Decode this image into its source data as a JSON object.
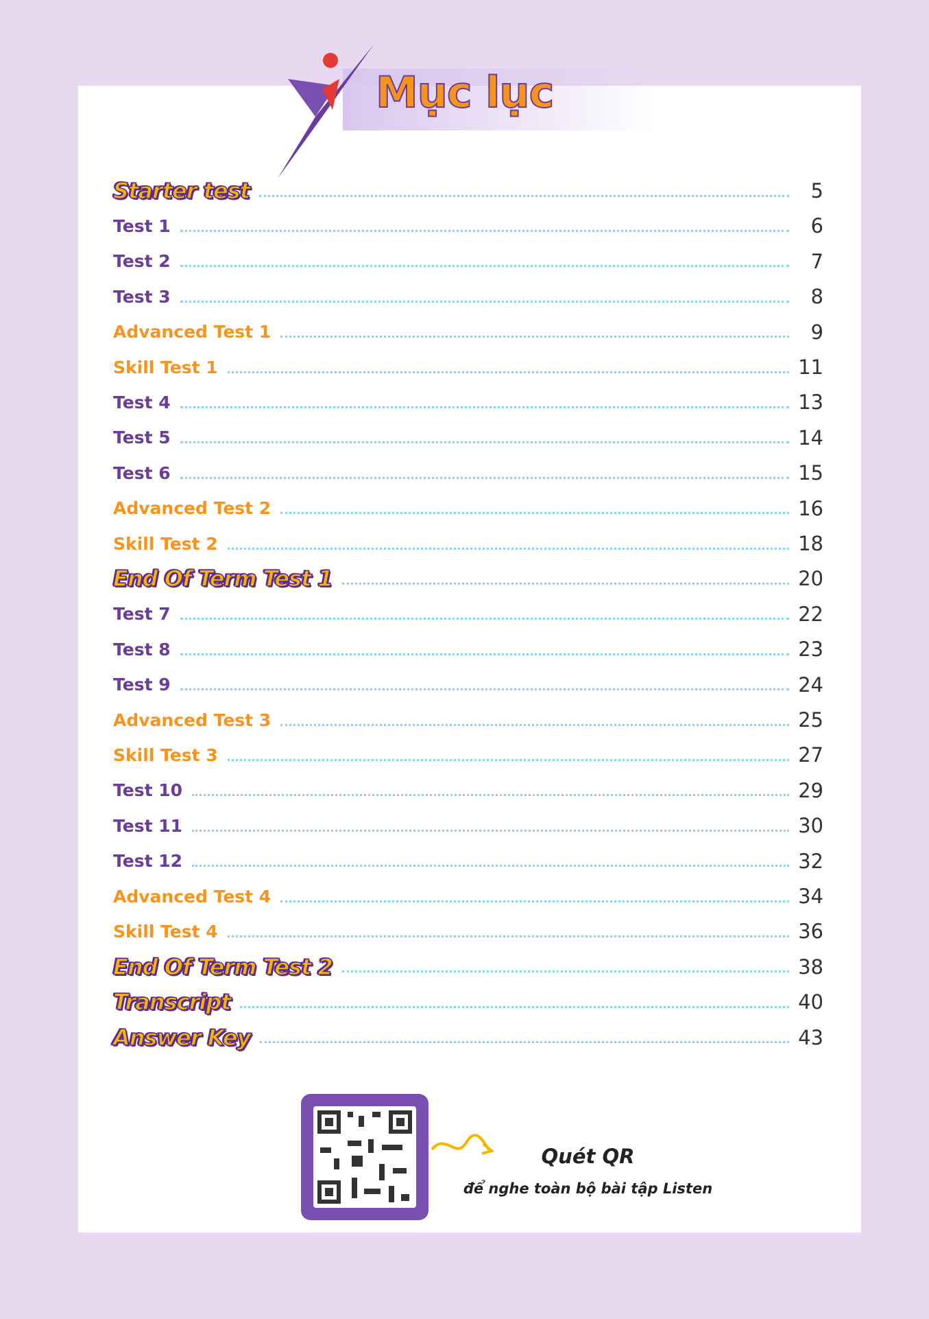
{
  "header": {
    "title": "Mục lục"
  },
  "entries": [
    {
      "label": "Starter test",
      "page": "5",
      "color": "#f7b500",
      "heading": true
    },
    {
      "label": "Test 1",
      "page": "6",
      "color": "#6a3d9a",
      "heading": false
    },
    {
      "label": "Test 2",
      "page": "7",
      "color": "#6a3d9a",
      "heading": false
    },
    {
      "label": "Test 3",
      "page": "8",
      "color": "#6a3d9a",
      "heading": false
    },
    {
      "label": "Advanced Test 1",
      "page": "9",
      "color": "#f7941d",
      "heading": false
    },
    {
      "label": "Skill Test 1",
      "page": "11",
      "color": "#f7941d",
      "heading": false
    },
    {
      "label": "Test 4",
      "page": "13",
      "color": "#6a3d9a",
      "heading": false
    },
    {
      "label": "Test 5",
      "page": "14",
      "color": "#6a3d9a",
      "heading": false
    },
    {
      "label": "Test 6",
      "page": "15",
      "color": "#6a3d9a",
      "heading": false
    },
    {
      "label": "Advanced Test 2",
      "page": "16",
      "color": "#f7941d",
      "heading": false
    },
    {
      "label": "Skill Test 2",
      "page": "18",
      "color": "#f7941d",
      "heading": false
    },
    {
      "label": "End Of Term Test 1",
      "page": "20",
      "color": "#f7b500",
      "heading": true
    },
    {
      "label": "Test 7",
      "page": "22",
      "color": "#6a3d9a",
      "heading": false
    },
    {
      "label": "Test 8",
      "page": "23",
      "color": "#6a3d9a",
      "heading": false
    },
    {
      "label": "Test 9",
      "page": "24",
      "color": "#6a3d9a",
      "heading": false
    },
    {
      "label": "Advanced Test 3",
      "page": "25",
      "color": "#f7941d",
      "heading": false
    },
    {
      "label": "Skill Test 3",
      "page": "27",
      "color": "#f7941d",
      "heading": false
    },
    {
      "label": "Test 10",
      "page": "29",
      "color": "#6a3d9a",
      "heading": false
    },
    {
      "label": "Test 11",
      "page": "30",
      "color": "#6a3d9a",
      "heading": false
    },
    {
      "label": "Test 12",
      "page": "32",
      "color": "#6a3d9a",
      "heading": false
    },
    {
      "label": "Advanced Test 4",
      "page": "34",
      "color": "#f7941d",
      "heading": false
    },
    {
      "label": "Skill Test 4",
      "page": "36",
      "color": "#f7941d",
      "heading": false
    },
    {
      "label": "End Of Term Test 2",
      "page": "38",
      "color": "#f7b500",
      "heading": true
    },
    {
      "label": "Transcript",
      "page": "40",
      "color": "#f7b500",
      "heading": true
    },
    {
      "label": "Answer Key",
      "page": "43",
      "color": "#f7b500",
      "heading": true
    }
  ],
  "qr": {
    "title": "Quét QR",
    "subtitle": "để nghe toàn bộ bài tập Listen"
  }
}
